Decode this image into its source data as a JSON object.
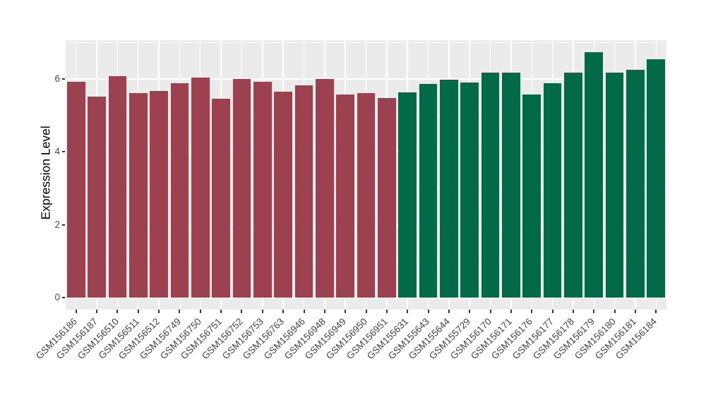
{
  "chart_data": {
    "type": "bar",
    "title": "",
    "xlabel": "",
    "ylabel": "Expression Level",
    "categories": [
      "GSM156186",
      "GSM156187",
      "GSM156510",
      "GSM156511",
      "GSM156512",
      "GSM156749",
      "GSM156750",
      "GSM156751",
      "GSM156752",
      "GSM156753",
      "GSM156763",
      "GSM156946",
      "GSM156948",
      "GSM156949",
      "GSM156950",
      "GSM156951",
      "GSM155631",
      "GSM155643",
      "GSM155644",
      "GSM155729",
      "GSM156170",
      "GSM156171",
      "GSM156176",
      "GSM156177",
      "GSM156178",
      "GSM156179",
      "GSM156180",
      "GSM156181",
      "GSM156184"
    ],
    "values": [
      5.92,
      5.52,
      6.07,
      5.61,
      5.67,
      5.89,
      6.03,
      5.46,
      6.01,
      5.93,
      5.65,
      5.82,
      6.0,
      5.58,
      5.61,
      5.48,
      5.63,
      5.86,
      5.99,
      5.9,
      6.17,
      6.17,
      5.57,
      5.88,
      6.18,
      6.73,
      6.17,
      6.25,
      6.55
    ],
    "groups": [
      "group1",
      "group1",
      "group1",
      "group1",
      "group1",
      "group1",
      "group1",
      "group1",
      "group1",
      "group1",
      "group1",
      "group1",
      "group1",
      "group1",
      "group1",
      "group1",
      "group2",
      "group2",
      "group2",
      "group2",
      "group2",
      "group2",
      "group2",
      "group2",
      "group2",
      "group2",
      "group2",
      "group2",
      "group2"
    ],
    "group_colors": {
      "group1": "#9B4150",
      "group2": "#026A49"
    },
    "yticks": [
      0,
      2,
      4,
      6
    ],
    "yticks_minor": [
      1,
      3,
      5,
      7
    ],
    "ylim": [
      -0.34,
      7.05
    ],
    "bar_width_fraction": 0.88,
    "panel_background": "#EBEBEB",
    "grid_color": "#FFFFFF",
    "tick_label_color": "#4A4A4A",
    "axis_title_color": "#000000",
    "grid": true,
    "legend": false
  }
}
